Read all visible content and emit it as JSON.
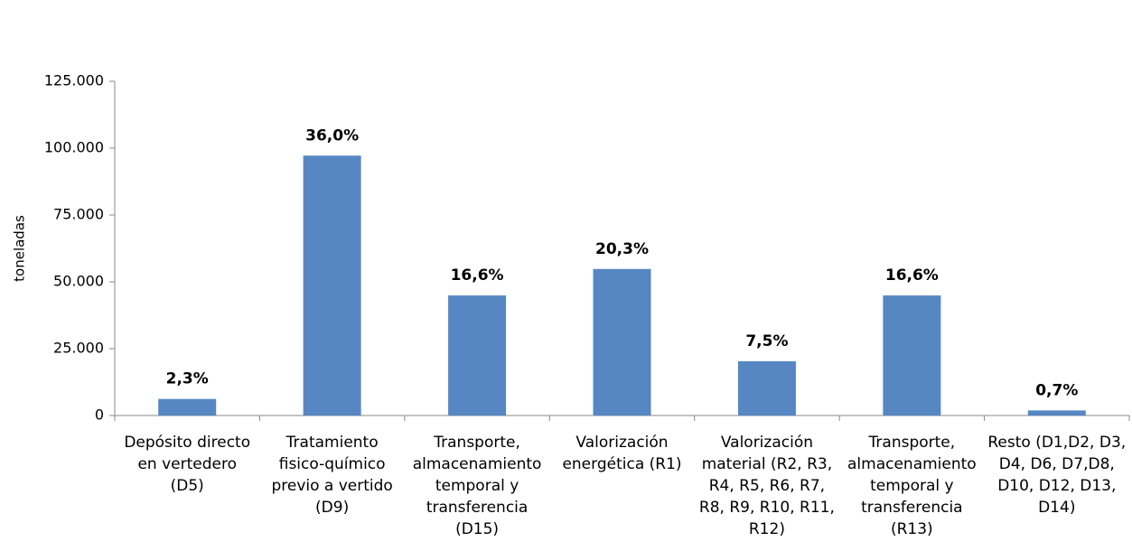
{
  "chart_data": {
    "type": "bar",
    "y_label": "toneladas",
    "categories": [
      "Depósito directo\nen vertedero\n(D5)",
      "Tratamiento\nfisico-químico\nprevio a vertido\n(D9)",
      "Transporte,\nalmacenamiento\ntemporal y\ntransferencia\n(D15)",
      "Valorización\nenergética (R1)",
      "Valorización\nmaterial (R2, R3,\nR4, R5, R6, R7,\nR8, R9, R10, R11,\nR12)",
      "Transporte,\nalmacenamiento\ntemporal y\ntransferencia\n(R13)",
      "Resto (D1,D2, D3,\nD4, D6, D7,D8,\nD10, D12, D13,\nD14)"
    ],
    "values": [
      6200,
      97200,
      44900,
      54800,
      20300,
      44900,
      1900
    ],
    "data_labels": [
      "2,3%",
      "36,0%",
      "16,6%",
      "20,3%",
      "7,5%",
      "16,6%",
      "0,7%"
    ],
    "color": "#5687c3",
    "ylim": [
      0,
      125000
    ],
    "yticks": [
      0,
      {
        "value": 25000,
        "label": "25.000"
      },
      {
        "value": 50000,
        "label": "50.000"
      },
      {
        "value": 75000,
        "label": "75.000"
      },
      {
        "value": 100000,
        "label": "100.000"
      },
      {
        "value": 125000,
        "label": "125.000"
      }
    ],
    "grid": false
  }
}
